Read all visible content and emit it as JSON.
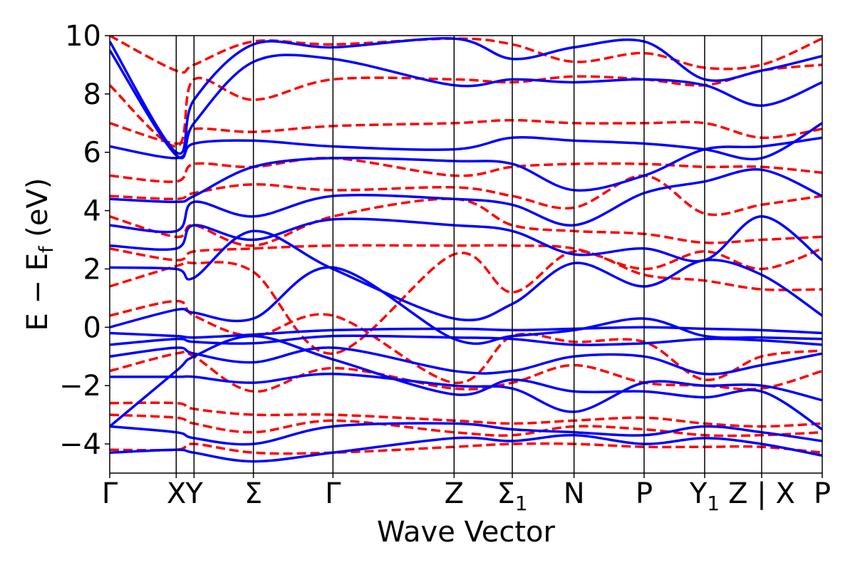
{
  "chart_data": {
    "type": "line",
    "xlabel": "Wave Vector",
    "ylabel_main": "E − E",
    "ylabel_sub": "f",
    "ylabel_unit": " (eV)",
    "ylim": [
      -5,
      10
    ],
    "yticks": [
      -4,
      -2,
      0,
      2,
      4,
      6,
      8,
      10
    ],
    "ytick_labels": [
      "−4",
      "−2",
      "0",
      "2",
      "4",
      "6",
      "8",
      "10"
    ],
    "xlim": [
      0,
      12.0
    ],
    "kpoints": [
      {
        "x": 0.0,
        "label": "Γ",
        "sub": ""
      },
      {
        "x": 1.12,
        "label": "X",
        "sub": ""
      },
      {
        "x": 1.42,
        "label": "Y",
        "sub": ""
      },
      {
        "x": 2.42,
        "label": "Σ",
        "sub": ""
      },
      {
        "x": 3.76,
        "label": "Γ",
        "sub": ""
      },
      {
        "x": 5.8,
        "label": "Z",
        "sub": ""
      },
      {
        "x": 6.78,
        "label": "Σ",
        "sub": "1"
      },
      {
        "x": 7.82,
        "label": "N",
        "sub": ""
      },
      {
        "x": 9.0,
        "label": "P",
        "sub": ""
      },
      {
        "x": 10.02,
        "label": "Y",
        "sub": "1"
      },
      {
        "x": 10.98,
        "label": "Z | X",
        "sub": ""
      },
      {
        "x": 12.0,
        "label": "P",
        "sub": ""
      }
    ],
    "series_colors": {
      "solid": "#0000ff",
      "dashed": "#ff0000"
    },
    "series": [
      {
        "style": "solid",
        "x": [
          0,
          1.12,
          1.42,
          2.42,
          3.76,
          5.8,
          6.78,
          7.82,
          9.0,
          10.02,
          10.98,
          12.0
        ],
        "y": [
          -0.2,
          -0.3,
          -0.35,
          -0.25,
          -0.1,
          -0.05,
          -0.1,
          -0.05,
          0.0,
          -0.05,
          -0.1,
          -0.2
        ]
      },
      {
        "style": "solid",
        "x": [
          0,
          1.12,
          1.42,
          2.42,
          3.76,
          5.8,
          6.78,
          7.82,
          9.0,
          10.02,
          10.98,
          12.0
        ],
        "y": [
          0.0,
          0.6,
          0.5,
          0.3,
          2.05,
          -0.4,
          -0.3,
          -0.1,
          0.3,
          -0.3,
          -0.35,
          -0.4
        ]
      },
      {
        "style": "solid",
        "x": [
          0,
          1.12,
          1.42,
          2.42,
          3.76,
          5.8,
          6.78,
          7.82,
          9.0,
          10.02,
          10.98,
          12.0
        ],
        "y": [
          -0.6,
          -0.4,
          -0.5,
          -0.55,
          -0.3,
          -0.35,
          -0.4,
          -0.6,
          -0.55,
          -0.4,
          -0.45,
          -0.6
        ]
      },
      {
        "style": "solid",
        "x": [
          0,
          1.12,
          1.42,
          2.42,
          3.76,
          5.8,
          6.78,
          7.82,
          9.0,
          10.02,
          10.98,
          12.0
        ],
        "y": [
          -1.0,
          -0.7,
          -0.9,
          -1.2,
          -0.7,
          -1.5,
          -1.5,
          -1.0,
          -1.0,
          -1.6,
          -1.3,
          -0.9
        ]
      },
      {
        "style": "solid",
        "x": [
          0,
          1.12,
          1.42,
          2.42,
          3.76,
          5.8,
          6.78,
          7.82,
          9.0,
          10.02,
          10.98,
          12.0
        ],
        "y": [
          -1.7,
          -1.7,
          -1.7,
          -1.9,
          -1.6,
          -2.0,
          -2.1,
          -2.9,
          -1.9,
          -2.0,
          -2.0,
          -2.5
        ]
      },
      {
        "style": "solid",
        "x": [
          0,
          1.12,
          1.42,
          2.42,
          3.76,
          5.8,
          6.78,
          7.82,
          9.0,
          10.02,
          10.98,
          12.0
        ],
        "y": [
          -3.4,
          -1.5,
          -1.0,
          -0.3,
          -1.1,
          -2.3,
          -1.8,
          -2.2,
          -2.2,
          -2.4,
          -2.2,
          -3.5
        ]
      },
      {
        "style": "solid",
        "x": [
          0,
          1.12,
          1.42,
          2.42,
          3.76,
          5.8,
          6.78,
          7.82,
          9.0,
          10.02,
          10.98,
          12.0
        ],
        "y": [
          -3.4,
          -3.6,
          -3.8,
          -4.0,
          -3.4,
          -3.3,
          -3.5,
          -3.6,
          -3.7,
          -3.4,
          -3.6,
          -3.9
        ]
      },
      {
        "style": "solid",
        "x": [
          0,
          1.12,
          1.42,
          2.42,
          3.76,
          5.8,
          6.78,
          7.82,
          9.0,
          10.02,
          10.98,
          12.0
        ],
        "y": [
          -4.3,
          -4.2,
          -4.3,
          -4.6,
          -4.3,
          -3.8,
          -3.9,
          -3.7,
          -4.0,
          -3.8,
          -4.0,
          -4.4
        ]
      },
      {
        "style": "solid",
        "x": [
          0,
          1.12,
          1.42,
          2.42,
          3.76,
          5.8,
          6.78,
          7.82,
          9.0,
          10.02,
          10.98,
          12.0
        ],
        "y": [
          2.05,
          2.0,
          1.7,
          3.3,
          2.0,
          0.3,
          0.8,
          2.2,
          1.4,
          2.3,
          1.8,
          0.4
        ]
      },
      {
        "style": "solid",
        "x": [
          0,
          1.12,
          1.42,
          2.42,
          3.76,
          5.8,
          6.78,
          7.82,
          9.0,
          10.02,
          10.98,
          12.0
        ],
        "y": [
          2.8,
          2.7,
          3.5,
          3.0,
          3.7,
          3.5,
          3.3,
          2.5,
          2.7,
          2.3,
          3.8,
          2.3
        ]
      },
      {
        "style": "solid",
        "x": [
          0,
          1.12,
          1.42,
          2.42,
          3.76,
          5.8,
          6.78,
          7.82,
          9.0,
          10.02,
          10.98,
          12.0
        ],
        "y": [
          3.5,
          3.3,
          4.3,
          3.8,
          4.5,
          4.4,
          4.2,
          3.5,
          4.6,
          5.0,
          5.4,
          4.5
        ]
      },
      {
        "style": "solid",
        "x": [
          0,
          1.12,
          1.42,
          2.42,
          3.76,
          5.8,
          6.78,
          7.82,
          9.0,
          10.02,
          10.98,
          12.0
        ],
        "y": [
          4.4,
          4.3,
          4.5,
          5.5,
          5.8,
          5.7,
          5.6,
          4.7,
          5.2,
          6.1,
          6.2,
          6.5
        ]
      },
      {
        "style": "solid",
        "x": [
          0,
          1.12,
          1.42,
          2.42,
          3.76,
          5.8,
          6.78,
          7.82,
          9.0,
          10.02,
          10.98,
          12.0
        ],
        "y": [
          6.2,
          5.8,
          6.3,
          6.4,
          6.2,
          6.1,
          6.5,
          6.4,
          6.3,
          6.1,
          5.8,
          7.0
        ]
      },
      {
        "style": "solid",
        "x": [
          0,
          1.12,
          1.42,
          2.42,
          3.76,
          5.8,
          6.78,
          7.82,
          9.0,
          10.02,
          10.98,
          12.0
        ],
        "y": [
          9.5,
          5.9,
          7.0,
          9.1,
          9.2,
          8.3,
          8.5,
          8.4,
          8.5,
          8.3,
          7.6,
          8.4
        ]
      },
      {
        "style": "solid",
        "x": [
          0,
          1.12,
          1.42,
          2.42,
          3.76,
          5.8,
          6.78,
          7.82,
          9.0,
          10.02,
          10.98,
          12.0
        ],
        "y": [
          9.8,
          6.0,
          7.8,
          9.7,
          9.6,
          9.9,
          9.2,
          9.6,
          9.8,
          8.5,
          8.8,
          9.3
        ]
      },
      {
        "style": "dashed",
        "x": [
          0,
          1.12,
          1.42,
          2.42,
          3.76,
          5.8,
          6.78,
          7.82,
          9.0,
          10.02,
          10.98,
          12.0
        ],
        "y": [
          0.4,
          0.9,
          0.4,
          -0.3,
          0.4,
          -1.9,
          -0.3,
          -0.5,
          -0.5,
          -1.8,
          -1.0,
          -0.8
        ]
      },
      {
        "style": "dashed",
        "x": [
          0,
          1.12,
          1.42,
          2.42,
          3.76,
          5.8,
          6.78,
          7.82,
          9.0,
          10.02,
          10.98,
          12.0
        ],
        "y": [
          -1.5,
          -0.9,
          -1.0,
          -2.2,
          -1.4,
          -2.1,
          -1.9,
          -1.3,
          -1.9,
          -2.0,
          -2.1,
          -1.5
        ]
      },
      {
        "style": "dashed",
        "x": [
          0,
          1.12,
          1.42,
          2.42,
          3.76,
          5.8,
          6.78,
          7.82,
          9.0,
          10.02,
          10.98,
          12.0
        ],
        "y": [
          -2.6,
          -2.6,
          -2.8,
          -3.0,
          -3.0,
          -3.2,
          -3.3,
          -3.2,
          -3.1,
          -3.3,
          -3.4,
          -3.3
        ]
      },
      {
        "style": "dashed",
        "x": [
          0,
          1.12,
          1.42,
          2.42,
          3.76,
          5.8,
          6.78,
          7.82,
          9.0,
          10.02,
          10.98,
          12.0
        ],
        "y": [
          -3.0,
          -3.1,
          -3.3,
          -3.6,
          -3.2,
          -3.6,
          -3.7,
          -3.4,
          -3.5,
          -3.7,
          -3.7,
          -3.6
        ]
      },
      {
        "style": "dashed",
        "x": [
          0,
          1.12,
          1.42,
          2.42,
          3.76,
          5.8,
          6.78,
          7.82,
          9.0,
          10.02,
          10.98,
          12.0
        ],
        "y": [
          -4.2,
          -4.2,
          -4.0,
          -4.3,
          -4.3,
          -4.1,
          -4.0,
          -4.0,
          -4.1,
          -4.1,
          -4.1,
          -4.3
        ]
      },
      {
        "style": "dashed",
        "x": [
          0,
          1.12,
          1.42,
          2.42,
          3.76,
          5.8,
          6.78,
          7.82,
          9.0,
          10.02,
          10.98,
          12.0
        ],
        "y": [
          1.4,
          2.1,
          2.2,
          1.9,
          -0.9,
          2.5,
          1.2,
          2.6,
          1.8,
          1.6,
          1.3,
          1.3
        ]
      },
      {
        "style": "dashed",
        "x": [
          0,
          1.12,
          1.42,
          2.42,
          3.76,
          5.8,
          6.78,
          7.82,
          9.0,
          10.02,
          10.98,
          12.0
        ],
        "y": [
          2.7,
          2.3,
          2.6,
          2.7,
          2.8,
          2.8,
          2.8,
          2.7,
          2.0,
          2.6,
          2.0,
          2.7
        ]
      },
      {
        "style": "dashed",
        "x": [
          0,
          1.12,
          1.42,
          2.42,
          3.76,
          5.8,
          6.78,
          7.82,
          9.0,
          10.02,
          10.98,
          12.0
        ],
        "y": [
          3.8,
          3.1,
          3.5,
          2.8,
          3.8,
          4.4,
          3.5,
          3.3,
          3.2,
          2.9,
          3.0,
          3.1
        ]
      },
      {
        "style": "dashed",
        "x": [
          0,
          1.12,
          1.42,
          2.42,
          3.76,
          5.8,
          6.78,
          7.82,
          9.0,
          10.02,
          10.98,
          12.0
        ],
        "y": [
          4.5,
          4.4,
          4.6,
          4.9,
          4.7,
          4.8,
          4.5,
          4.1,
          5.2,
          3.9,
          4.2,
          4.5
        ]
      },
      {
        "style": "dashed",
        "x": [
          0,
          1.12,
          1.42,
          2.42,
          3.76,
          5.8,
          6.78,
          7.82,
          9.0,
          10.02,
          10.98,
          12.0
        ],
        "y": [
          5.2,
          5.0,
          5.6,
          5.5,
          5.8,
          5.2,
          5.5,
          5.6,
          5.6,
          5.5,
          5.5,
          5.3
        ]
      },
      {
        "style": "dashed",
        "x": [
          0,
          1.12,
          1.42,
          2.42,
          3.76,
          5.8,
          6.78,
          7.82,
          9.0,
          10.02,
          10.98,
          12.0
        ],
        "y": [
          7.0,
          6.3,
          6.8,
          6.7,
          6.9,
          7.0,
          7.1,
          7.0,
          7.0,
          7.0,
          6.5,
          6.8
        ]
      },
      {
        "style": "dashed",
        "x": [
          0,
          1.12,
          1.42,
          2.42,
          3.76,
          5.8,
          6.78,
          7.82,
          9.0,
          10.02,
          10.98,
          12.0
        ],
        "y": [
          8.3,
          6.2,
          8.5,
          7.8,
          8.5,
          8.5,
          8.4,
          8.6,
          8.5,
          8.3,
          8.8,
          9.0
        ]
      },
      {
        "style": "dashed",
        "x": [
          0,
          1.12,
          1.42,
          2.42,
          3.76,
          5.8,
          6.78,
          7.82,
          9.0,
          10.02,
          10.98,
          12.0
        ],
        "y": [
          10.0,
          8.8,
          9.0,
          9.8,
          9.7,
          9.9,
          9.7,
          9.1,
          9.4,
          8.9,
          9.0,
          9.9
        ]
      }
    ]
  }
}
